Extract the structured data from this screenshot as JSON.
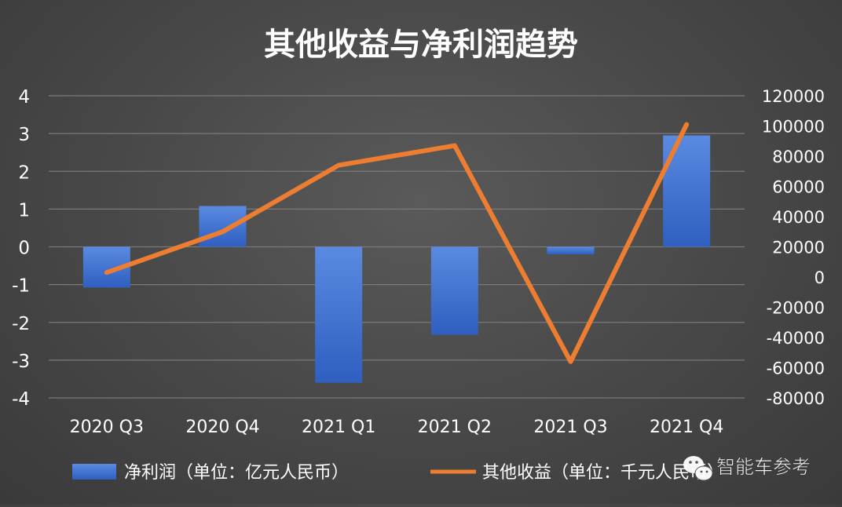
{
  "chart_data": {
    "type": "bar",
    "title": "其他收益与净利润趋势",
    "categories": [
      "2020 Q3",
      "2020 Q4",
      "2021 Q1",
      "2021 Q2",
      "2021 Q3",
      "2021 Q4"
    ],
    "series": [
      {
        "name": "净利润（单位：亿元人民币）",
        "type": "bar",
        "axis": "left",
        "values": [
          -1.08,
          1.08,
          -3.6,
          -2.33,
          -0.2,
          2.95
        ]
      },
      {
        "name": "其他收益（单位：千元人民币）",
        "type": "line",
        "axis": "right",
        "values": [
          3000,
          30000,
          74000,
          87000,
          -56000,
          101000
        ]
      }
    ],
    "y_left": {
      "range": [
        -4,
        4
      ],
      "ticks": [
        "4",
        "3",
        "2",
        "1",
        "0",
        "-1",
        "-2",
        "-3",
        "-4"
      ]
    },
    "y_right": {
      "range": [
        -80000,
        120000
      ],
      "ticks": [
        "120000",
        "100000",
        "80000",
        "60000",
        "40000",
        "20000",
        "0",
        "-20000",
        "-40000",
        "-60000",
        "-80000"
      ]
    },
    "grid": true,
    "legend_position": "bottom",
    "colors": {
      "bar": "#4472c4",
      "line": "#ed7d31"
    }
  },
  "watermark": {
    "text": "智能车参考",
    "icon": "wechat-icon"
  }
}
